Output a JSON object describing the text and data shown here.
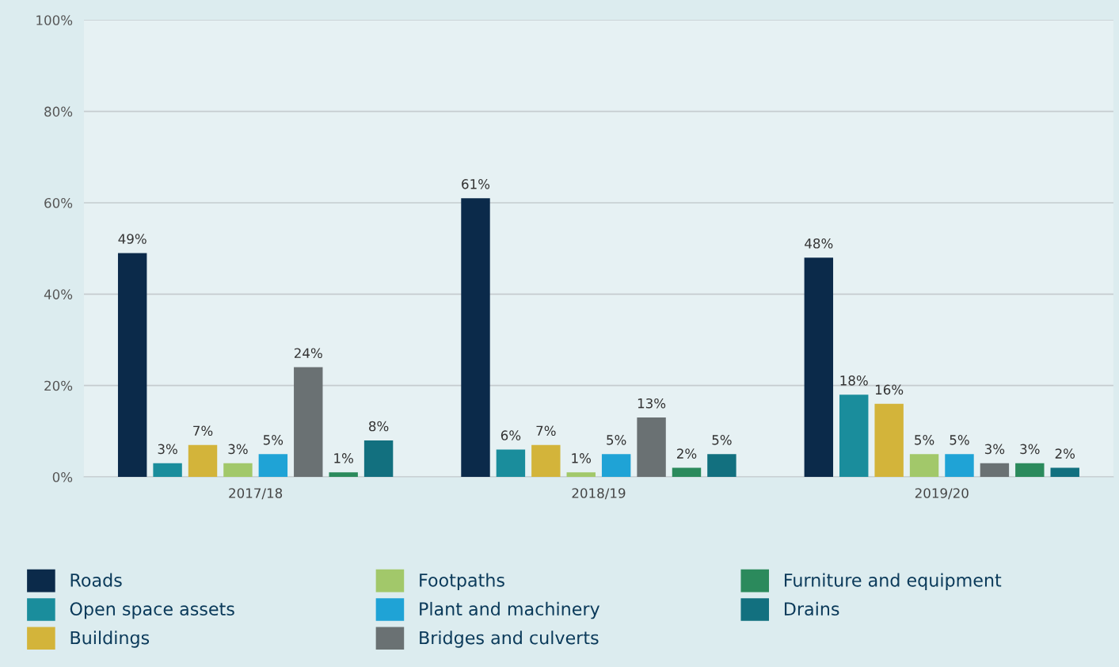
{
  "chart_data": {
    "type": "bar",
    "categories": [
      "2017/18",
      "2018/19",
      "2019/20"
    ],
    "series": [
      {
        "name": "Roads",
        "color": "#0b2a4a",
        "values": [
          49,
          61,
          48
        ],
        "value_labels": [
          "49%",
          "61%",
          "48%"
        ]
      },
      {
        "name": "Open space assets",
        "color": "#1a8d9c",
        "values": [
          3,
          6,
          18
        ],
        "value_labels": [
          "3%",
          "6%",
          "18%"
        ]
      },
      {
        "name": "Buildings",
        "color": "#d3b43a",
        "values": [
          7,
          7,
          16
        ],
        "value_labels": [
          "7%",
          "7%",
          "16%"
        ]
      },
      {
        "name": "Footpaths",
        "color": "#a2c86a",
        "values": [
          3,
          1,
          5
        ],
        "value_labels": [
          "3%",
          "1%",
          "5%"
        ]
      },
      {
        "name": "Plant and machinery",
        "color": "#1fa3d6",
        "values": [
          5,
          5,
          5
        ],
        "value_labels": [
          "5%",
          "5%",
          "5%"
        ]
      },
      {
        "name": "Bridges and culverts",
        "color": "#6a7173",
        "values": [
          24,
          13,
          3
        ],
        "value_labels": [
          "24%",
          "13%",
          "3%"
        ]
      },
      {
        "name": "Furniture and equipment",
        "color": "#2b8a5c",
        "values": [
          1,
          2,
          3
        ],
        "value_labels": [
          "1%",
          "2%",
          "3%"
        ]
      },
      {
        "name": "Drains",
        "color": "#12707f",
        "values": [
          8,
          5,
          2
        ],
        "value_labels": [
          "8%",
          "5%",
          "2%"
        ]
      }
    ],
    "ylim": [
      0,
      100
    ],
    "yticks": [
      {
        "value": 0,
        "label": "0%"
      },
      {
        "value": 20,
        "label": "20%"
      },
      {
        "value": 40,
        "label": "40%"
      },
      {
        "value": 60,
        "label": "60%"
      },
      {
        "value": 80,
        "label": "80%"
      },
      {
        "value": 100,
        "label": "100%"
      }
    ],
    "grid": "y",
    "legend": "bottom"
  }
}
